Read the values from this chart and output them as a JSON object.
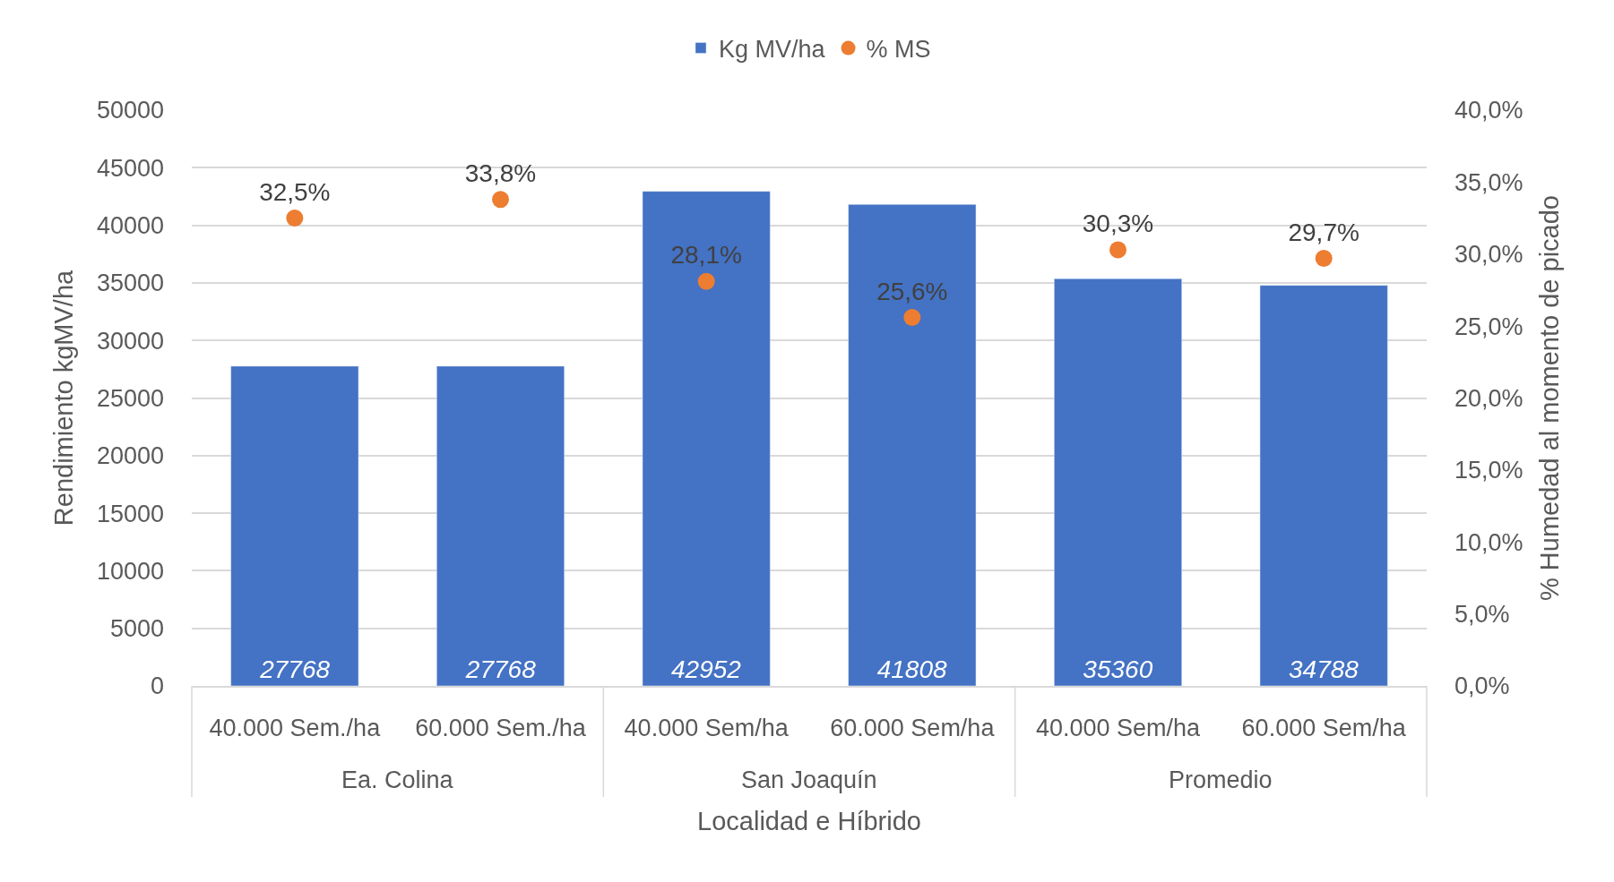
{
  "chart_data": {
    "type": "bar",
    "xlabel": "Localidad e Híbrido",
    "ylabel": "Rendimiento kgMV/ha",
    "y2label": "% Humedad al momento de picado",
    "categories": [
      "40.000 Sem./ha",
      "60.000 Sem./ha",
      "40.000 Sem/ha",
      "60.000 Sem/ha",
      "40.000 Sem/ha",
      "60.000 Sem/ha"
    ],
    "annotations": [
      "Ea. Colina",
      "San Joaquín",
      "Promedio"
    ],
    "series": [
      {
        "name": "Kg MV/ha",
        "color": "#4472c4",
        "values": [
          27768,
          27768,
          42952,
          41808,
          35360,
          34788
        ],
        "value_labels": [
          "27768",
          "27768",
          "42952",
          "41808",
          "35360",
          "34788"
        ]
      },
      {
        "name": "% MS",
        "type": "scatter",
        "axis": "y2",
        "color": "#ed7d31",
        "values": [
          32.5,
          33.8,
          28.1,
          25.6,
          30.3,
          29.7
        ],
        "value_labels": [
          "32,5%",
          "33,8%",
          "28,1%",
          "25,6%",
          "30,3%",
          "29,7%"
        ]
      }
    ],
    "ylim": [
      0,
      50000
    ],
    "yticks": [
      0,
      5000,
      10000,
      15000,
      20000,
      25000,
      30000,
      35000,
      40000,
      45000,
      50000
    ],
    "y2lim": [
      0,
      40
    ],
    "y2ticks": [
      {
        "value": 0,
        "label": "0,0%"
      },
      {
        "value": 5,
        "label": "5,0%"
      },
      {
        "value": 10,
        "label": "10,0%"
      },
      {
        "value": 15,
        "label": "15,0%"
      },
      {
        "value": 20,
        "label": "20,0%"
      },
      {
        "value": 25,
        "label": "25,0%"
      },
      {
        "value": 30,
        "label": "30,0%"
      },
      {
        "value": 35,
        "label": "35,0%"
      },
      {
        "value": 40,
        "label": "40,0%"
      }
    ],
    "grid": "y",
    "legend": "top",
    "marker": "circle"
  }
}
